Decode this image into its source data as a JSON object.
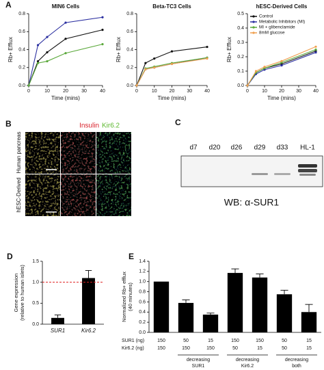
{
  "chart_data": [
    {
      "panel_label": "A",
      "type": "line",
      "title": "MIN6 Cells",
      "x_label": "Time (mins)",
      "y_label": "Rb+ Efflux",
      "x": [
        0,
        5,
        10,
        20,
        40
      ],
      "xlim": [
        0,
        40
      ],
      "xticks": [
        0,
        10,
        20,
        30,
        40
      ],
      "ylim": [
        0,
        0.8
      ],
      "yticks": [
        {
          "value": 0,
          "label": "0.0"
        },
        0.2,
        0.4,
        0.6,
        0.8
      ],
      "series": [
        {
          "color": "#2b2fa0",
          "values": [
            0,
            0.45,
            0.54,
            0.7,
            0.76
          ]
        },
        {
          "color": "#111111",
          "values": [
            0,
            0.27,
            0.37,
            0.52,
            0.62
          ]
        },
        {
          "color": "#5aa83a",
          "values": [
            0,
            0.25,
            0.27,
            0.36,
            0.46
          ]
        }
      ]
    },
    {
      "type": "line",
      "title": "Beta-TC3 Cells",
      "x_label": "Time (mins)",
      "y_label": "Rb+ Efflux",
      "x": [
        0,
        5,
        10,
        20,
        40
      ],
      "xlim": [
        0,
        40
      ],
      "xticks": [
        0,
        10,
        20,
        30,
        40
      ],
      "ylim": [
        0,
        0.8
      ],
      "yticks": [
        {
          "value": 0,
          "label": "0.0"
        },
        0.2,
        0.4,
        0.6,
        0.8
      ],
      "series": [
        {
          "color": "#111111",
          "values": [
            0,
            0.25,
            0.3,
            0.38,
            0.43
          ]
        },
        {
          "color": "#2b2fa0",
          "values": [
            0,
            0.18,
            0.2,
            0.24,
            0.31
          ]
        },
        {
          "color": "#5aa83a",
          "values": [
            0,
            0.19,
            0.21,
            0.25,
            0.31
          ]
        },
        {
          "color": "#f0a050",
          "values": [
            0,
            0.18,
            0.2,
            0.24,
            0.3
          ]
        }
      ]
    },
    {
      "type": "line",
      "title": "hESC-Derived Cells",
      "x_label": "Time (mins)",
      "y_label": "Rb+ Efflux",
      "x": [
        0,
        5,
        10,
        20,
        40
      ],
      "xlim": [
        0,
        40
      ],
      "xticks": [
        0,
        10,
        20,
        30,
        40
      ],
      "ylim": [
        0,
        0.5
      ],
      "yticks": [
        {
          "value": 0,
          "label": "0.0"
        },
        0.1,
        0.2,
        0.3,
        0.4,
        0.5
      ],
      "legend": "upper left",
      "series": [
        {
          "name": "Control",
          "color": "#111111",
          "values": [
            0,
            0.09,
            0.12,
            0.15,
            0.24
          ]
        },
        {
          "name": "Metabolic Inhibitors (MI)",
          "color": "#2b2fa0",
          "values": [
            0,
            0.08,
            0.11,
            0.14,
            0.23
          ]
        },
        {
          "name": "MI + glibenclamide",
          "color": "#5aa83a",
          "values": [
            0,
            0.09,
            0.12,
            0.16,
            0.25
          ]
        },
        {
          "name": "8mM glucose",
          "color": "#f0a050",
          "values": [
            0,
            0.1,
            0.13,
            0.17,
            0.27
          ]
        }
      ]
    },
    {
      "panel_label": "D",
      "type": "bar",
      "y_label": [
        "Gene expression",
        "(relative to human islets)"
      ],
      "categories": [
        "SUR1",
        "Kir6.2"
      ],
      "values": [
        0.15,
        1.1
      ],
      "errors": [
        0.07,
        0.18
      ],
      "color": "#000000",
      "ylim": [
        0,
        1.5
      ],
      "yticks": [
        {
          "value": 0,
          "label": "0.0"
        },
        0.5,
        {
          "value": 1,
          "label": "1.0"
        },
        1.5
      ],
      "reference_line": 1,
      "reference_color": "#e02020"
    },
    {
      "panel_label": "E",
      "type": "bar",
      "y_label": [
        "Normalized Rb+ efflux",
        "(40 minutes)"
      ],
      "values": [
        1.0,
        0.58,
        0.35,
        1.17,
        1.08,
        0.75,
        0.4
      ],
      "errors": [
        0,
        0.06,
        0.03,
        0.08,
        0.07,
        0.08,
        0.15
      ],
      "color": "#000000",
      "ylim": [
        0,
        1.4
      ],
      "yticks": [
        {
          "value": 0,
          "label": "0.0"
        },
        0.2,
        0.4,
        0.6,
        0.8,
        {
          "value": 1,
          "label": "1.0"
        },
        1.2,
        1.4
      ],
      "table": {
        "rows": [
          {
            "label": "SUR1 (ng)",
            "values": [
              150,
              50,
              15,
              150,
              150,
              50,
              15
            ]
          },
          {
            "label": "Kir6.2 (ng)",
            "values": [
              150,
              150,
              150,
              50,
              15,
              50,
              15
            ]
          }
        ],
        "groups": [
          [
            "decreasing",
            "SUR1"
          ],
          [
            "decreasing",
            "Kir6.2"
          ],
          [
            "decreasing",
            "both"
          ]
        ]
      }
    }
  ],
  "panel_b": {
    "label": "B",
    "stains": [
      {
        "name": "Insulin",
        "color": "#d8202a"
      },
      {
        "name": "Kir6.2",
        "color": "#5cb82e"
      }
    ],
    "rows": [
      "Human pancreas",
      "hESC-Derived"
    ]
  },
  "panel_c": {
    "label": "C",
    "lanes": [
      "d7",
      "d20",
      "d26",
      "d29",
      "d33",
      "HL-1"
    ],
    "caption": "WB: α-SUR1"
  }
}
